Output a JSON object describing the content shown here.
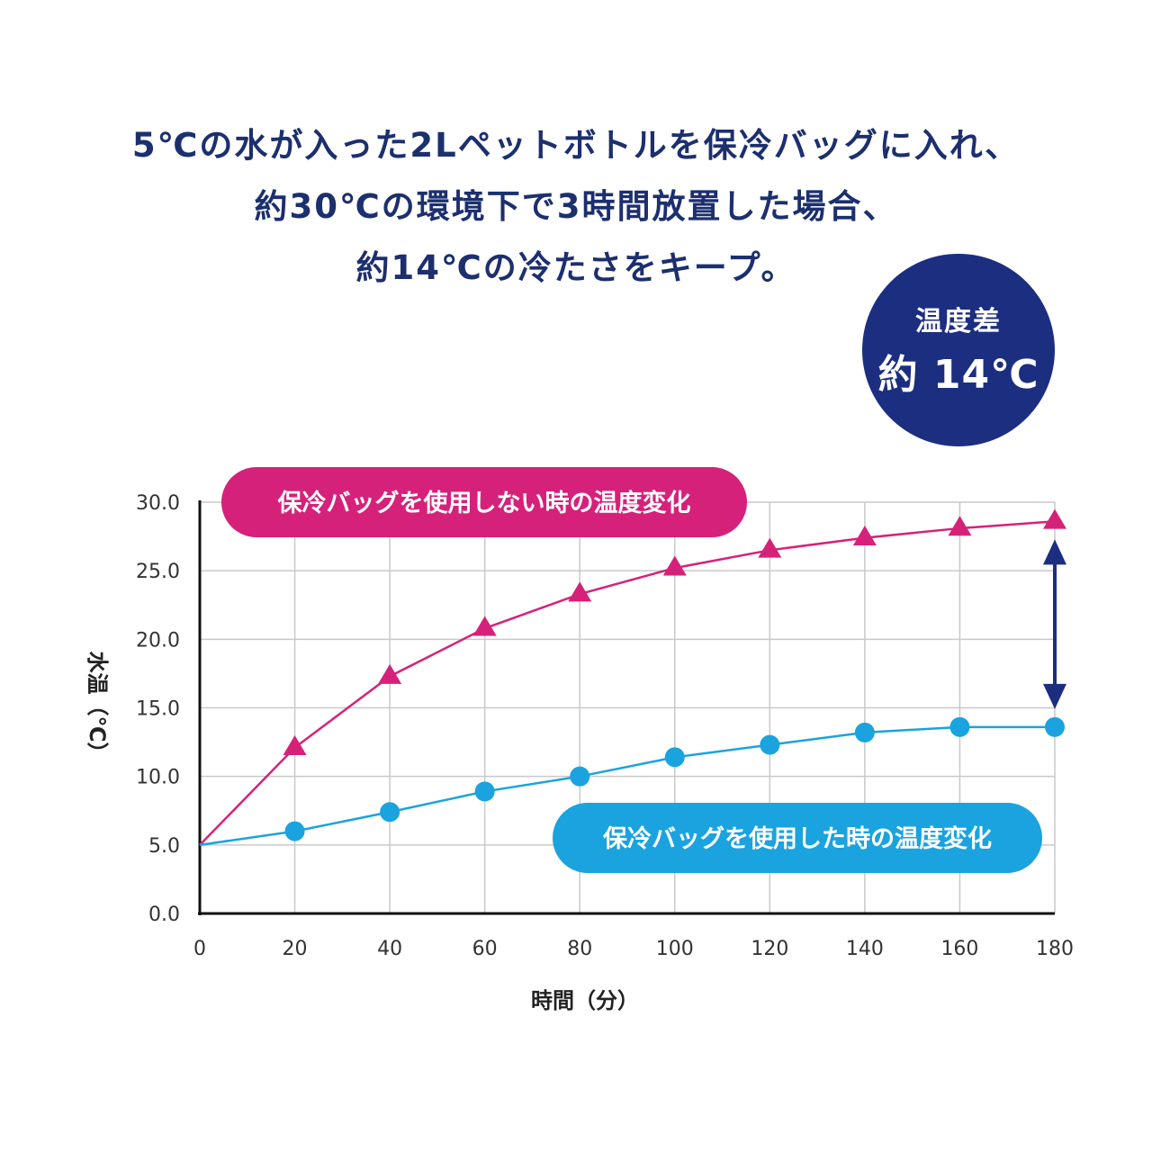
{
  "header": {
    "lines": [
      "5℃の水が入った2Lペットボトルを保冷バッグに入れ、",
      "約30℃の環境下で3時間放置した場合、",
      "約14℃の冷たさをキープ。"
    ]
  },
  "badge": {
    "line1": "温度差",
    "line2": "約 14℃"
  },
  "colors": {
    "navy": "#1c2e80",
    "magenta": "#d6217a",
    "cyan": "#1aa3de"
  },
  "chart_data": {
    "type": "line",
    "x": [
      0,
      20,
      40,
      60,
      80,
      100,
      120,
      140,
      160,
      180
    ],
    "xticks": [
      "0",
      "20",
      "40",
      "60",
      "80",
      "100",
      "120",
      "140",
      "160",
      "180"
    ],
    "yticks": [
      "0.0",
      "5.0",
      "10.0",
      "15.0",
      "20.0",
      "25.0",
      "30.0"
    ],
    "xlim": [
      0,
      180
    ],
    "ylim": [
      0,
      30
    ],
    "xlabel": "時間（分）",
    "ylabel": "水温（℃）",
    "grid": true,
    "series": [
      {
        "name": "保冷バッグを使用しない時の温度変化",
        "marker": "triangle",
        "color": "#d6217a",
        "values": [
          5.0,
          12.1,
          17.3,
          20.8,
          23.3,
          25.2,
          26.5,
          27.4,
          28.1,
          28.6
        ]
      },
      {
        "name": "保冷バッグを使用した時の温度変化",
        "marker": "circle",
        "color": "#1aa3de",
        "values": [
          5.0,
          6.0,
          7.4,
          8.9,
          10.0,
          11.4,
          12.3,
          13.2,
          13.6,
          13.6
        ]
      }
    ]
  }
}
